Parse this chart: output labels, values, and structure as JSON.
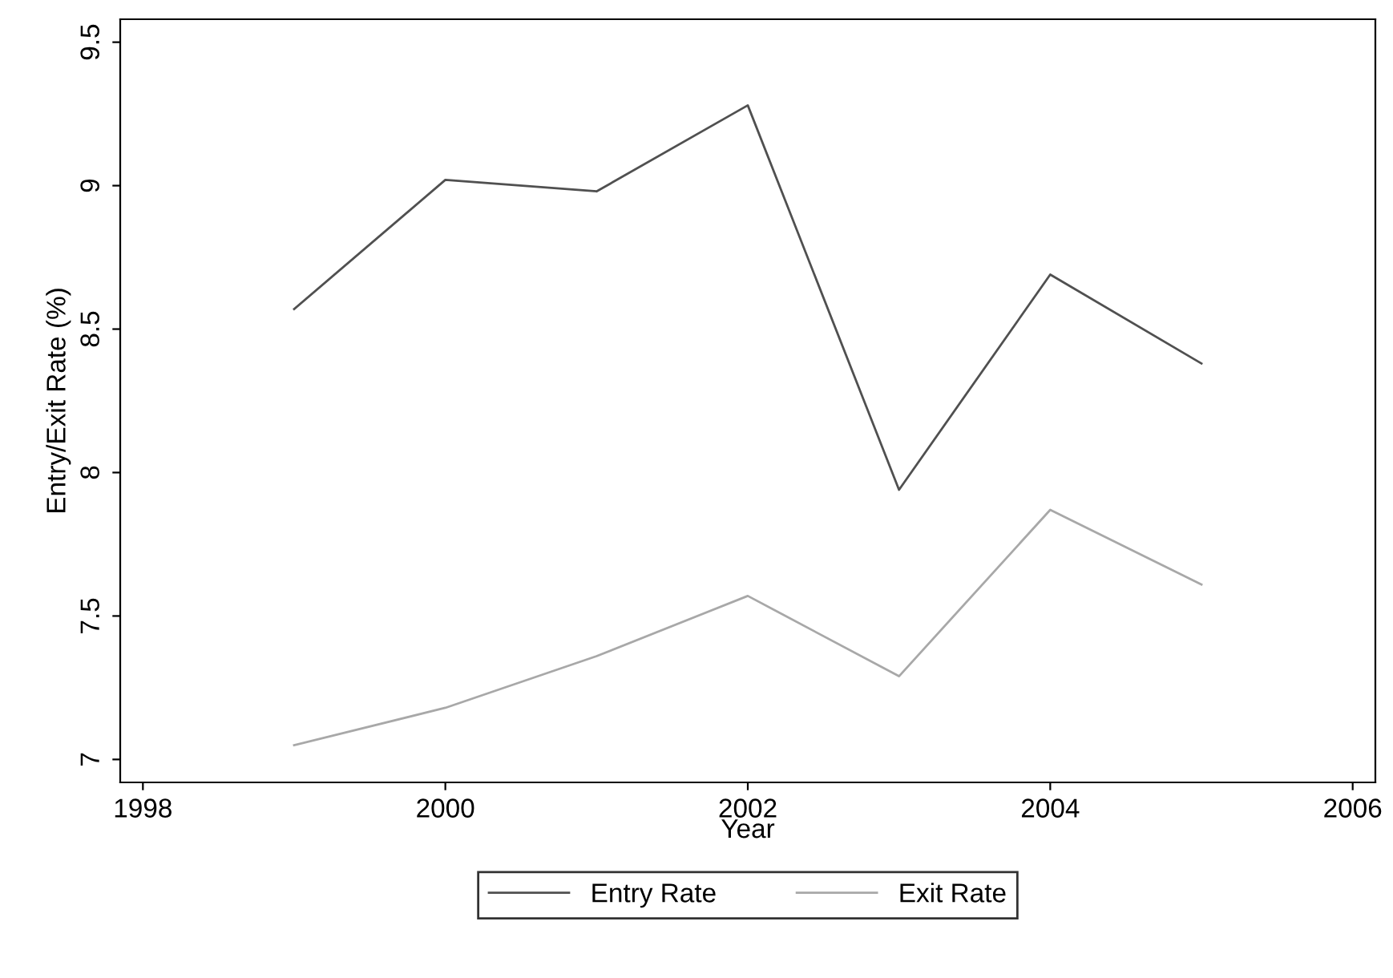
{
  "chart_data": {
    "type": "line",
    "xlabel": "Year",
    "ylabel": "Entry/Exit Rate (%)",
    "x": [
      1999,
      2000,
      2001,
      2002,
      2003,
      2004,
      2005
    ],
    "series": [
      {
        "name": "Entry Rate",
        "color": "#505050",
        "values": [
          8.57,
          9.02,
          8.98,
          9.28,
          7.94,
          8.69,
          8.38
        ]
      },
      {
        "name": "Exit Rate",
        "color": "#a8a8a8",
        "values": [
          7.05,
          7.18,
          7.36,
          7.57,
          7.29,
          7.87,
          7.61
        ]
      }
    ],
    "xlim": [
      1997.85,
      2006.15
    ],
    "xticks": [
      1998,
      2000,
      2002,
      2004,
      2006
    ],
    "ylim": [
      6.92,
      9.58
    ],
    "yticks": [
      7,
      7.5,
      8,
      8.5,
      9,
      9.5
    ],
    "grid": false,
    "legend": "bottom",
    "marker": "none",
    "line_style": "solid"
  }
}
